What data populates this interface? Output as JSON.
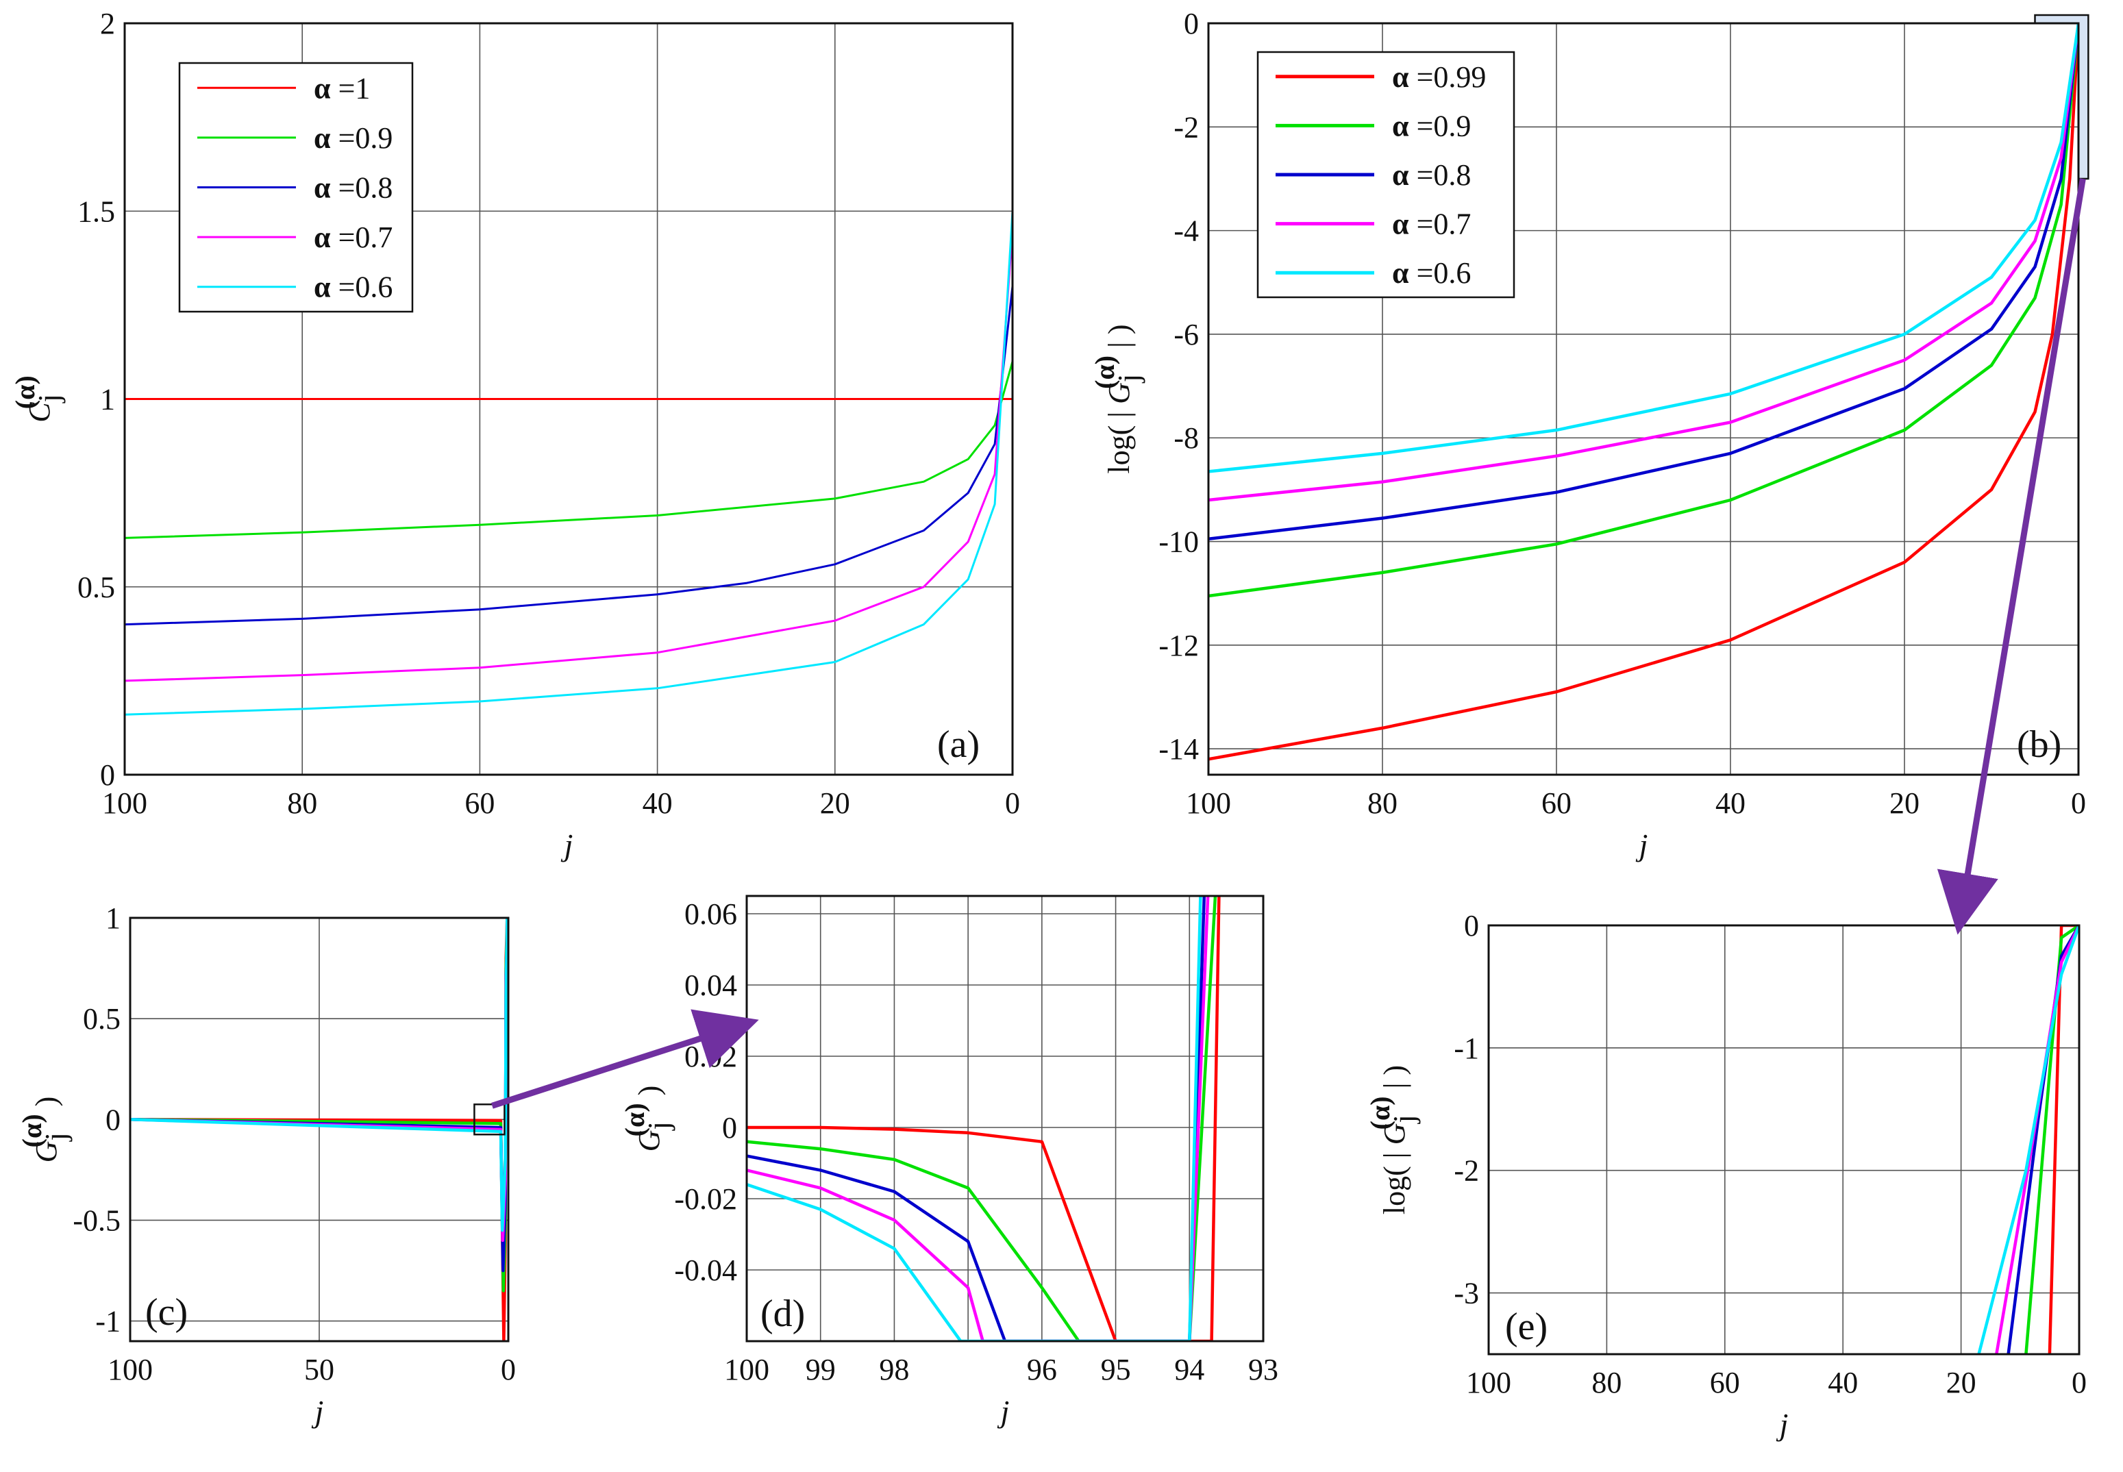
{
  "figure": {
    "arrow_color": "#7030a0",
    "highlight_fill": "#c9daf0"
  },
  "chart_data": [
    {
      "id": "a",
      "type": "line",
      "panel_label": "(a)",
      "xlabel": "j",
      "ylabel": {
        "symbol": "C",
        "superscript": "(α)",
        "subscript": "j"
      },
      "xlim": [
        100,
        0
      ],
      "ylim": [
        0,
        2
      ],
      "xticks": [
        100,
        80,
        60,
        40,
        20,
        0
      ],
      "xtick_labels": [
        "100",
        "80",
        "60",
        "40",
        "20",
        "0"
      ],
      "yticks": [
        0,
        0.5,
        1,
        1.5,
        2
      ],
      "ytick_labels": [
        "0",
        "0.5",
        "1",
        "1.5",
        "2"
      ],
      "grid": true,
      "legend_position": "top-left",
      "legend_prefix": "α",
      "series": [
        {
          "name": "=1",
          "color": "#ff0000",
          "x": [
            100,
            0
          ],
          "y": [
            1.0,
            1.0
          ]
        },
        {
          "name": "=0.9",
          "color": "#00e000",
          "x": [
            100,
            80,
            60,
            40,
            20,
            10,
            5,
            2,
            0
          ],
          "y": [
            0.63,
            0.645,
            0.665,
            0.69,
            0.735,
            0.78,
            0.84,
            0.93,
            1.1
          ]
        },
        {
          "name": "=0.8",
          "color": "#0000cc",
          "x": [
            100,
            80,
            60,
            40,
            30,
            20,
            10,
            5,
            2,
            0
          ],
          "y": [
            0.4,
            0.415,
            0.44,
            0.48,
            0.51,
            0.56,
            0.65,
            0.75,
            0.88,
            1.3
          ]
        },
        {
          "name": "=0.7",
          "color": "#ff00ff",
          "x": [
            100,
            80,
            60,
            40,
            20,
            10,
            5,
            2,
            0
          ],
          "y": [
            0.25,
            0.265,
            0.285,
            0.325,
            0.41,
            0.5,
            0.62,
            0.8,
            1.45
          ]
        },
        {
          "name": "=0.6",
          "color": "#00e8ff",
          "x": [
            100,
            80,
            60,
            40,
            20,
            10,
            5,
            2,
            0
          ],
          "y": [
            0.16,
            0.175,
            0.195,
            0.23,
            0.3,
            0.4,
            0.52,
            0.72,
            1.5
          ]
        }
      ]
    },
    {
      "id": "b",
      "type": "line",
      "panel_label": "(b)",
      "xlabel": "j",
      "ylabel": {
        "prefix": "log( |",
        "symbol": "G",
        "superscript": "(α)",
        "subscript": "j",
        "suffix": "| )"
      },
      "xlim": [
        100,
        0
      ],
      "ylim": [
        -14.5,
        0
      ],
      "xticks": [
        100,
        80,
        60,
        40,
        20,
        0
      ],
      "xtick_labels": [
        "100",
        "80",
        "60",
        "40",
        "20",
        "0"
      ],
      "yticks": [
        -14,
        -12,
        -10,
        -8,
        -6,
        -4,
        -2,
        0
      ],
      "ytick_labels": [
        "-14",
        "-12",
        "-10",
        "-8",
        "-6",
        "-4",
        "-2",
        "0"
      ],
      "grid": true,
      "legend_position": "top-left",
      "legend_prefix": "α",
      "series": [
        {
          "name": "=0.99",
          "color": "#ff0000",
          "x": [
            100,
            80,
            60,
            40,
            20,
            10,
            5,
            3,
            1,
            0
          ],
          "y": [
            -14.2,
            -13.6,
            -12.9,
            -11.9,
            -10.4,
            -9.0,
            -7.5,
            -6.0,
            -3.0,
            0
          ]
        },
        {
          "name": "=0.9",
          "color": "#00e000",
          "x": [
            100,
            80,
            60,
            40,
            20,
            10,
            5,
            2,
            0
          ],
          "y": [
            -11.05,
            -10.6,
            -10.05,
            -9.2,
            -7.85,
            -6.6,
            -5.3,
            -3.5,
            0
          ]
        },
        {
          "name": "=0.8",
          "color": "#0000cc",
          "x": [
            100,
            80,
            60,
            40,
            20,
            10,
            5,
            2,
            0
          ],
          "y": [
            -9.95,
            -9.55,
            -9.05,
            -8.3,
            -7.05,
            -5.9,
            -4.7,
            -3.0,
            0
          ]
        },
        {
          "name": "=0.7",
          "color": "#ff00ff",
          "x": [
            100,
            80,
            60,
            40,
            20,
            10,
            5,
            2,
            0
          ],
          "y": [
            -9.2,
            -8.85,
            -8.35,
            -7.7,
            -6.5,
            -5.4,
            -4.2,
            -2.6,
            0
          ]
        },
        {
          "name": "=0.6",
          "color": "#00e8ff",
          "x": [
            100,
            80,
            60,
            40,
            20,
            10,
            5,
            2,
            0
          ],
          "y": [
            -8.65,
            -8.3,
            -7.85,
            -7.15,
            -6.0,
            -4.9,
            -3.8,
            -2.3,
            0
          ]
        }
      ]
    },
    {
      "id": "c",
      "type": "line",
      "panel_label": "(c)",
      "xlabel": "j",
      "ylabel": {
        "symbol": "G",
        "superscript": "(α)",
        "subscript": "j",
        "suffix": ")"
      },
      "xlim": [
        100,
        0
      ],
      "ylim": [
        -1.1,
        1.0
      ],
      "xticks": [
        100,
        50,
        0
      ],
      "xtick_labels": [
        "100",
        "50",
        "0"
      ],
      "yticks": [
        -1,
        -0.5,
        0,
        0.5,
        1
      ],
      "ytick_labels": [
        "-1",
        "-0.5",
        "0",
        "0.5",
        "1"
      ],
      "grid": true,
      "series": [
        {
          "name": "α=0.99",
          "color": "#ff0000",
          "x": [
            100,
            2,
            1.2,
            0.8,
            0.6,
            0.3
          ],
          "y": [
            0,
            -0.005,
            -1.1,
            -0.6,
            0.8,
            1.0
          ]
        },
        {
          "name": "α=0.9",
          "color": "#00e000",
          "x": [
            100,
            2,
            1.3,
            0.8,
            0.6,
            0.3
          ],
          "y": [
            0,
            -0.02,
            -0.85,
            -0.5,
            0.75,
            0.95
          ]
        },
        {
          "name": "α=0.8",
          "color": "#0000cc",
          "x": [
            100,
            2,
            1.4,
            0.8,
            0.6,
            0.3
          ],
          "y": [
            0,
            -0.04,
            -0.75,
            -0.4,
            0.7,
            0.9
          ]
        },
        {
          "name": "α=0.7",
          "color": "#ff00ff",
          "x": [
            100,
            2,
            1.5,
            0.8,
            0.6,
            0.3
          ],
          "y": [
            0,
            -0.05,
            -0.6,
            -0.3,
            0.65,
            0.85
          ]
        },
        {
          "name": "α=0.6",
          "color": "#00e8ff",
          "x": [
            100,
            2,
            1.6,
            0.8,
            0.6,
            0.3
          ],
          "y": [
            0,
            -0.06,
            -0.55,
            -0.2,
            0.6,
            1.0
          ]
        }
      ]
    },
    {
      "id": "d",
      "type": "line",
      "panel_label": "(d)",
      "xlabel": "j",
      "ylabel": {
        "symbol": "G",
        "superscript": "(α)",
        "subscript": "j",
        "suffix": ")"
      },
      "xlim": [
        100,
        93
      ],
      "ylim": [
        -0.06,
        0.065
      ],
      "xticks": [
        100,
        99,
        98,
        97,
        96,
        95,
        94,
        93
      ],
      "xtick_labels": [
        "100",
        "99",
        "98",
        "",
        "96",
        "95",
        "94",
        "93"
      ],
      "yticks": [
        -0.04,
        -0.02,
        0,
        0.02,
        0.04,
        0.06
      ],
      "ytick_labels": [
        "-0.04",
        "-0.02",
        "0",
        "0.02",
        "0.04",
        "0.06"
      ],
      "grid": true,
      "series": [
        {
          "name": "α=0.99",
          "color": "#ff0000",
          "x": [
            100,
            99,
            98,
            97,
            96,
            95,
            95,
            94.0,
            93.7,
            93.6
          ],
          "y": [
            0,
            0,
            -0.0005,
            -0.0015,
            -0.004,
            -0.06,
            -0.06,
            -0.06,
            -0.06,
            0.065
          ]
        },
        {
          "name": "α=0.9",
          "color": "#00e000",
          "x": [
            100,
            99,
            98,
            97,
            96,
            95.5,
            95,
            94,
            93.65
          ],
          "y": [
            -0.004,
            -0.006,
            -0.009,
            -0.017,
            -0.045,
            -0.06,
            -0.06,
            -0.06,
            0.065
          ]
        },
        {
          "name": "α=0.8",
          "color": "#0000cc",
          "x": [
            100,
            99,
            98,
            97,
            96.5,
            96,
            95.5,
            94,
            93.8
          ],
          "y": [
            -0.008,
            -0.012,
            -0.018,
            -0.032,
            -0.06,
            -0.06,
            -0.06,
            -0.06,
            0.065
          ]
        },
        {
          "name": "α=0.7",
          "color": "#ff00ff",
          "x": [
            100,
            99,
            98,
            97,
            96.8,
            96,
            94,
            93.75
          ],
          "y": [
            -0.012,
            -0.017,
            -0.026,
            -0.045,
            -0.06,
            -0.06,
            -0.06,
            0.065
          ]
        },
        {
          "name": "α=0.6",
          "color": "#00e8ff",
          "x": [
            100,
            99,
            98,
            97.1,
            97,
            94,
            93.85
          ],
          "y": [
            -0.016,
            -0.023,
            -0.034,
            -0.06,
            -0.06,
            -0.06,
            0.065
          ]
        }
      ]
    },
    {
      "id": "e",
      "type": "line",
      "panel_label": "(e)",
      "xlabel": "j",
      "ylabel": {
        "prefix": "log( |",
        "symbol": "G",
        "superscript": "(α)",
        "subscript": "j",
        "suffix": "| )"
      },
      "xlim": [
        100,
        0
      ],
      "ylim": [
        -3.5,
        0
      ],
      "xticks": [
        100,
        80,
        60,
        40,
        20,
        0
      ],
      "xtick_labels": [
        "100",
        "80",
        "60",
        "40",
        "20",
        "0"
      ],
      "yticks": [
        -3,
        -2,
        -1,
        0
      ],
      "ytick_labels": [
        "-3",
        "-2",
        "-1",
        "0"
      ],
      "grid": true,
      "series": [
        {
          "name": "α=0.99",
          "color": "#ff0000",
          "x": [
            5,
            3,
            2,
            0
          ],
          "y": [
            -3.5,
            0,
            0,
            0
          ]
        },
        {
          "name": "α=0.9",
          "color": "#00e000",
          "x": [
            9,
            5,
            3,
            0
          ],
          "y": [
            -3.5,
            -1.2,
            -0.1,
            0
          ]
        },
        {
          "name": "α=0.8",
          "color": "#0000cc",
          "x": [
            12,
            7,
            3,
            0
          ],
          "y": [
            -3.5,
            -1.6,
            -0.25,
            0
          ]
        },
        {
          "name": "α=0.7",
          "color": "#ff00ff",
          "x": [
            14,
            8,
            3,
            0
          ],
          "y": [
            -3.5,
            -1.8,
            -0.3,
            0
          ]
        },
        {
          "name": "α=0.6",
          "color": "#00e8ff",
          "x": [
            17,
            9,
            3,
            0
          ],
          "y": [
            -3.5,
            -2.0,
            -0.4,
            0
          ]
        }
      ]
    }
  ]
}
